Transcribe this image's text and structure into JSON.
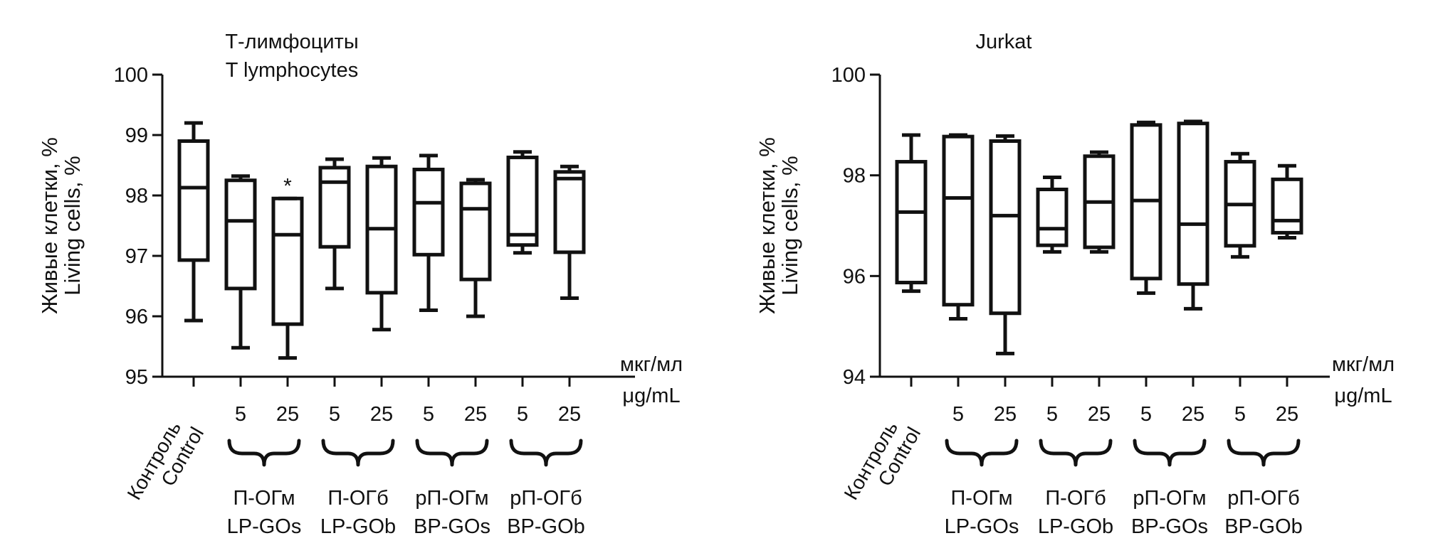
{
  "chart_data": [
    {
      "type": "box",
      "title_lines": [
        "Т-лимфоциты",
        "T lymphocytes"
      ],
      "ylabel_lines": [
        "Живые клетки, %",
        "Living cells, %"
      ],
      "ylim": [
        95,
        100
      ],
      "yticks": [
        95,
        96,
        97,
        98,
        99,
        100
      ],
      "grid": false,
      "units_lines": [
        "мкг/мл",
        "μg/mL"
      ],
      "control_label_lines": [
        "Контроль",
        "Control"
      ],
      "dose_labels": [
        "5",
        "25",
        "5",
        "25",
        "5",
        "25",
        "5",
        "25"
      ],
      "groups": [
        {
          "label_lines": [
            "П-ОГм",
            "LP-GOs"
          ]
        },
        {
          "label_lines": [
            "П-ОГб",
            "LP-GOb"
          ]
        },
        {
          "label_lines": [
            "рП-ОГм",
            "BP-GOs"
          ]
        },
        {
          "label_lines": [
            "рП-ОГб",
            "BP-GOb"
          ]
        }
      ],
      "boxes": [
        {
          "category": "Control",
          "min": 95.93,
          "q1": 96.93,
          "median": 98.13,
          "q3": 98.9,
          "max": 99.2
        },
        {
          "category": "LP-GOs 5",
          "min": 95.48,
          "q1": 96.46,
          "median": 97.58,
          "q3": 98.25,
          "max": 98.32
        },
        {
          "category": "LP-GOs 25",
          "min": 95.31,
          "q1": 95.87,
          "median": 97.35,
          "q3": 97.95,
          "max": 97.95,
          "annotation": "*"
        },
        {
          "category": "LP-GOb 5",
          "min": 96.46,
          "q1": 97.15,
          "median": 98.22,
          "q3": 98.46,
          "max": 98.6
        },
        {
          "category": "LP-GOb 25",
          "min": 95.78,
          "q1": 96.39,
          "median": 97.45,
          "q3": 98.48,
          "max": 98.62
        },
        {
          "category": "BP-GOs 5",
          "min": 96.1,
          "q1": 97.02,
          "median": 97.88,
          "q3": 98.43,
          "max": 98.66
        },
        {
          "category": "BP-GOs 25",
          "min": 96.0,
          "q1": 96.61,
          "median": 97.78,
          "q3": 98.2,
          "max": 98.26
        },
        {
          "category": "BP-GOb 5",
          "min": 97.05,
          "q1": 97.18,
          "median": 97.35,
          "q3": 98.63,
          "max": 98.72
        },
        {
          "category": "BP-GOb 25",
          "min": 96.3,
          "q1": 97.06,
          "median": 98.28,
          "q3": 98.39,
          "max": 98.48
        }
      ]
    },
    {
      "type": "box",
      "title_lines": [
        "Jurkat"
      ],
      "ylabel_lines": [
        "Живые клетки, %",
        "Living cells, %"
      ],
      "ylim": [
        94,
        100
      ],
      "yticks": [
        94,
        96,
        98,
        100
      ],
      "grid": false,
      "units_lines": [
        "мкг/мл",
        "μg/mL"
      ],
      "control_label_lines": [
        "Контроль",
        "Control"
      ],
      "dose_labels": [
        "5",
        "25",
        "5",
        "25",
        "5",
        "25",
        "5",
        "25"
      ],
      "groups": [
        {
          "label_lines": [
            "П-ОГм",
            "LP-GOs"
          ]
        },
        {
          "label_lines": [
            "П-ОГб",
            "LP-GOb"
          ]
        },
        {
          "label_lines": [
            "рП-ОГм",
            "BP-GOs"
          ]
        },
        {
          "label_lines": [
            "рП-ОГб",
            "BP-GOb"
          ]
        }
      ],
      "boxes": [
        {
          "category": "Control",
          "min": 95.7,
          "q1": 95.87,
          "median": 97.27,
          "q3": 98.27,
          "max": 98.8
        },
        {
          "category": "LP-GOs 5",
          "min": 95.15,
          "q1": 95.43,
          "median": 97.55,
          "q3": 98.77,
          "max": 98.8
        },
        {
          "category": "LP-GOs 25",
          "min": 94.46,
          "q1": 95.26,
          "median": 97.2,
          "q3": 98.68,
          "max": 98.78
        },
        {
          "category": "LP-GOb 5",
          "min": 96.48,
          "q1": 96.61,
          "median": 96.94,
          "q3": 97.72,
          "max": 97.96
        },
        {
          "category": "LP-GOb 25",
          "min": 96.48,
          "q1": 96.57,
          "median": 97.47,
          "q3": 98.38,
          "max": 98.46
        },
        {
          "category": "BP-GOs 5",
          "min": 95.66,
          "q1": 95.95,
          "median": 97.5,
          "q3": 99.0,
          "max": 99.05
        },
        {
          "category": "BP-GOs 25",
          "min": 95.35,
          "q1": 95.84,
          "median": 97.03,
          "q3": 99.03,
          "max": 99.07
        },
        {
          "category": "BP-GOb 5",
          "min": 96.38,
          "q1": 96.6,
          "median": 97.42,
          "q3": 98.27,
          "max": 98.43
        },
        {
          "category": "BP-GOb 25",
          "min": 96.76,
          "q1": 96.86,
          "median": 97.1,
          "q3": 97.92,
          "max": 98.19
        }
      ]
    }
  ]
}
